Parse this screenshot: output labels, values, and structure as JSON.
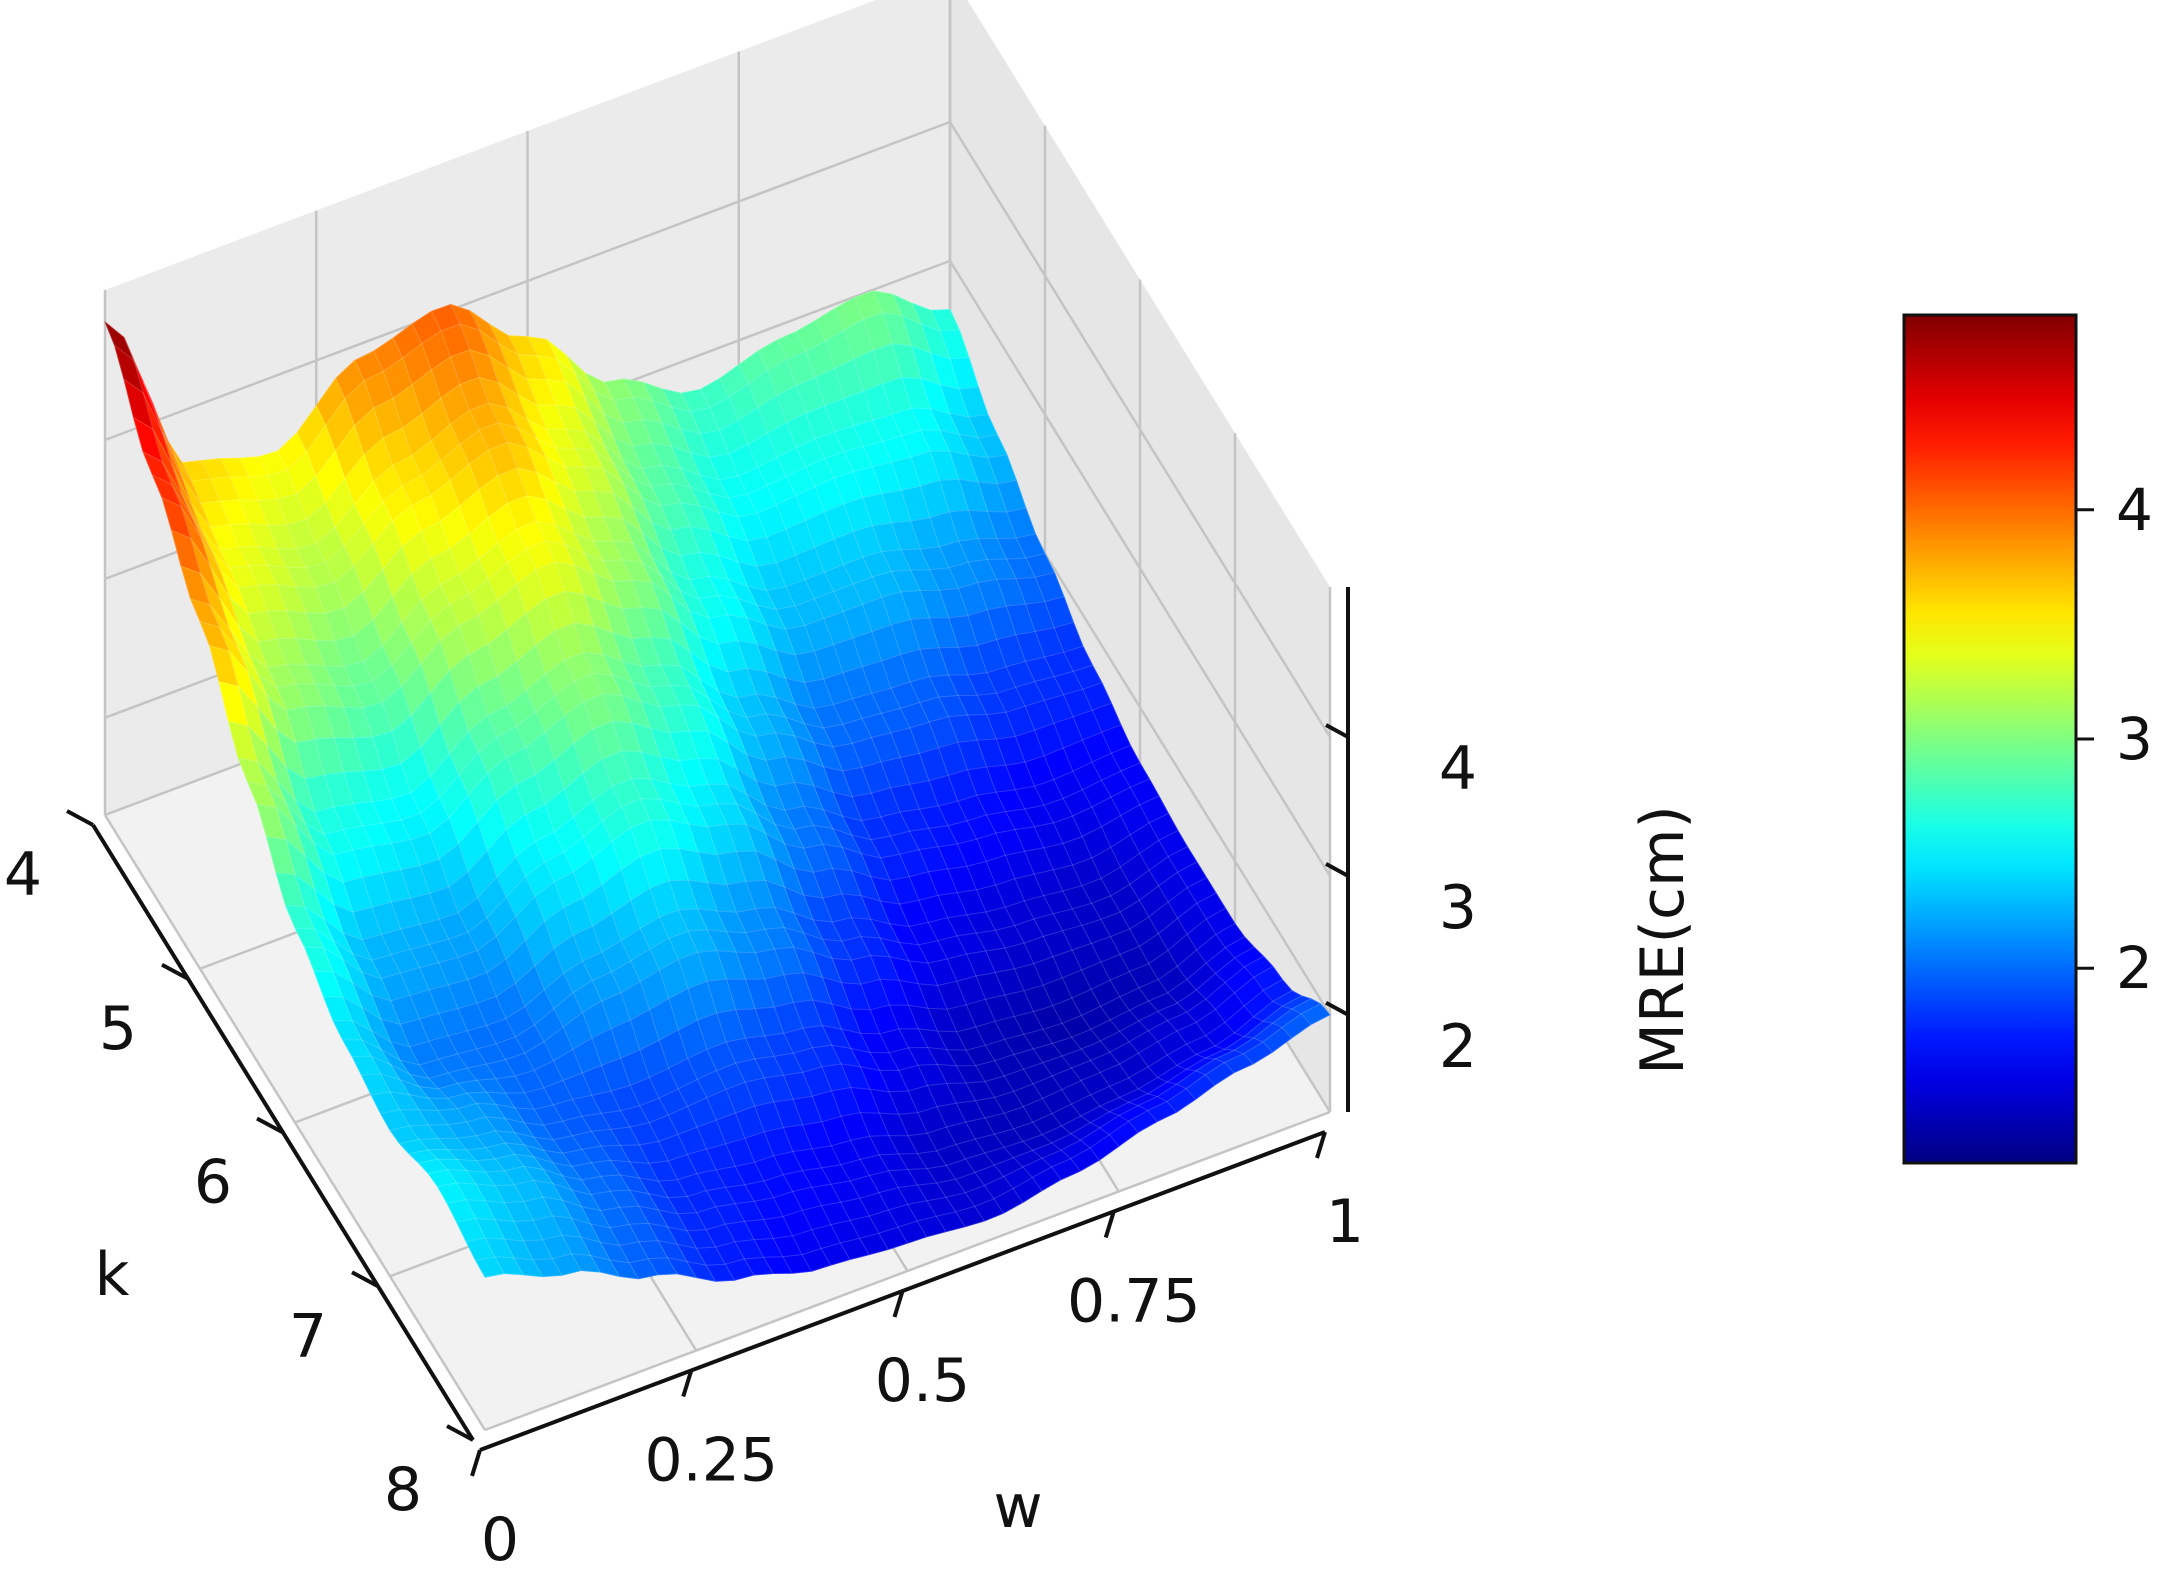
{
  "chart_data": {
    "type": "surface",
    "title": "",
    "xlabel": "w",
    "ylabel": "k",
    "zlabel": "MRE(cm)",
    "x_ticks": [
      "0",
      "0.25",
      "0.5",
      "0.75",
      "1"
    ],
    "y_ticks": [
      "4",
      "5",
      "6",
      "7",
      "8"
    ],
    "z_ticks": [
      "2",
      "3",
      "4"
    ],
    "xlim": [
      0,
      1
    ],
    "ylim": [
      4,
      8
    ],
    "zlim": [
      1.3,
      4.9
    ],
    "grid": true,
    "colormap": "jet",
    "colorbar": {
      "ticks": [
        "2",
        "3",
        "4"
      ],
      "range": [
        1.15,
        4.85
      ],
      "placement": "right"
    },
    "w_values": [
      0,
      0.1,
      0.2,
      0.3,
      0.4,
      0.5,
      0.6,
      0.7,
      0.8,
      0.9,
      1.0
    ],
    "k_values": [
      4,
      4.5,
      5,
      5.5,
      6,
      6.5,
      7,
      7.5,
      8
    ],
    "mre_values": [
      [
        4.85,
        3.6,
        3.45,
        3.9,
        4.05,
        3.6,
        3.05,
        2.75,
        2.9,
        3.0,
        2.65
      ],
      [
        4.3,
        3.4,
        3.2,
        3.55,
        3.75,
        3.35,
        2.85,
        2.55,
        2.6,
        2.55,
        2.3
      ],
      [
        3.8,
        3.1,
        2.9,
        3.25,
        3.45,
        3.1,
        2.6,
        2.3,
        2.3,
        2.15,
        2.0
      ],
      [
        3.2,
        2.6,
        2.5,
        2.85,
        3.05,
        2.75,
        2.3,
        2.0,
        1.95,
        1.8,
        1.75
      ],
      [
        2.7,
        2.25,
        2.2,
        2.5,
        2.7,
        2.45,
        2.05,
        1.75,
        1.65,
        1.55,
        1.6
      ],
      [
        2.45,
        2.05,
        2.0,
        2.2,
        2.3,
        2.1,
        1.8,
        1.55,
        1.45,
        1.4,
        1.55
      ],
      [
        2.35,
        2.2,
        1.95,
        1.85,
        1.9,
        1.8,
        1.55,
        1.35,
        1.3,
        1.35,
        1.55
      ],
      [
        2.5,
        2.3,
        2.0,
        1.75,
        1.65,
        1.55,
        1.4,
        1.35,
        1.4,
        1.5,
        1.7
      ],
      [
        2.4,
        2.2,
        1.95,
        1.7,
        1.55,
        1.5,
        1.45,
        1.55,
        1.7,
        1.85,
        2.0
      ]
    ]
  }
}
